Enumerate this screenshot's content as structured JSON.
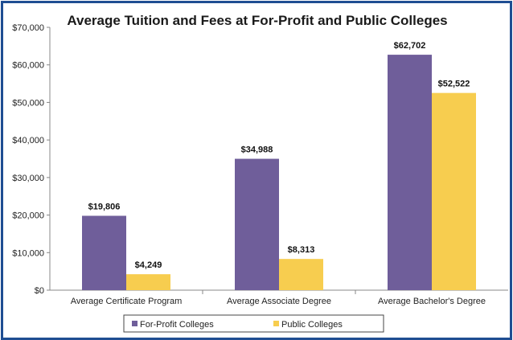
{
  "chart_data": {
    "type": "bar",
    "title": "Average Tuition and Fees at For-Profit and Public Colleges",
    "xlabel": "",
    "ylabel": "",
    "ylim": [
      0,
      70000
    ],
    "yticks": [
      0,
      10000,
      20000,
      30000,
      40000,
      50000,
      60000,
      70000
    ],
    "ytick_labels": [
      "$0",
      "$10,000",
      "$20,000",
      "$30,000",
      "$40,000",
      "$50,000",
      "$60,000",
      "$70,000"
    ],
    "categories": [
      "Average Certificate Program",
      "Average Associate Degree",
      "Average Bachelor's Degree"
    ],
    "series": [
      {
        "name": "For-Profit Colleges",
        "color": "#6f5e9a",
        "values": [
          19806,
          34988,
          62702
        ],
        "labels": [
          "$19,806",
          "$34,988",
          "$62,702"
        ]
      },
      {
        "name": "Public Colleges",
        "color": "#f7cd4f",
        "values": [
          4249,
          8313,
          52522
        ],
        "labels": [
          "$4,249",
          "$8,313",
          "$52,522"
        ]
      }
    ],
    "legend_position": "bottom",
    "grid": false
  }
}
